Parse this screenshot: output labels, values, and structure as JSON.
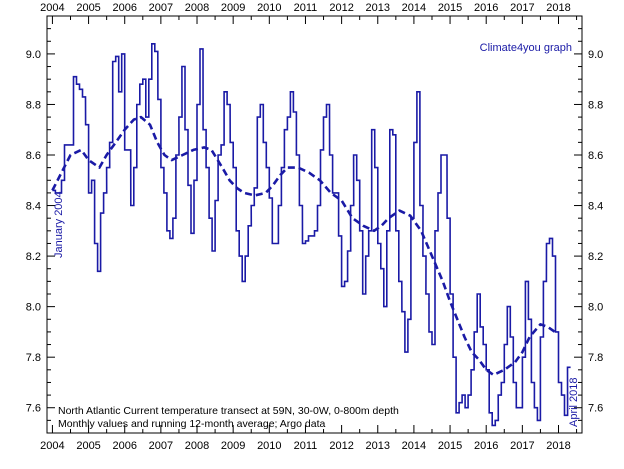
{
  "chart_data": {
    "type": "line",
    "title": "",
    "credit": "Climate4you graph",
    "start_label": "January 2004",
    "end_label": "April 2018",
    "caption": [
      "North Atlantic Current temperature transect at 59N, 30-0W, 0-800m depth",
      "Monthly values and running 12-month average; Argo data"
    ],
    "xlabel": "",
    "ylabel": "",
    "xlim": [
      2003.85,
      2018.65
    ],
    "ylim": [
      7.5,
      9.15
    ],
    "x_ticks": [
      2004,
      2005,
      2006,
      2007,
      2008,
      2009,
      2010,
      2011,
      2012,
      2013,
      2014,
      2015,
      2016,
      2017,
      2018
    ],
    "y_ticks": [
      7.6,
      7.8,
      8.0,
      8.2,
      8.4,
      8.6,
      8.8,
      9.0
    ],
    "y_tick_labels": [
      "7.6",
      "7.8",
      "8.0",
      "8.2",
      "8.4",
      "8.6",
      "8.8",
      "9.0"
    ],
    "colors": {
      "series": "#1a1aa6",
      "axis": "#000000"
    },
    "series": [
      {
        "style": "step",
        "x": [
          2004.0,
          2004.083,
          2004.167,
          2004.25,
          2004.333,
          2004.417,
          2004.5,
          2004.583,
          2004.667,
          2004.75,
          2004.833,
          2004.917,
          2005.0,
          2005.083,
          2005.167,
          2005.25,
          2005.333,
          2005.417,
          2005.5,
          2005.583,
          2005.667,
          2005.75,
          2005.833,
          2005.917,
          2006.0,
          2006.083,
          2006.167,
          2006.25,
          2006.333,
          2006.417,
          2006.5,
          2006.583,
          2006.667,
          2006.75,
          2006.833,
          2006.917,
          2007.0,
          2007.083,
          2007.167,
          2007.25,
          2007.333,
          2007.417,
          2007.5,
          2007.583,
          2007.667,
          2007.75,
          2007.833,
          2007.917,
          2008.0,
          2008.083,
          2008.167,
          2008.25,
          2008.333,
          2008.417,
          2008.5,
          2008.583,
          2008.667,
          2008.75,
          2008.833,
          2008.917,
          2009.0,
          2009.083,
          2009.167,
          2009.25,
          2009.333,
          2009.417,
          2009.5,
          2009.583,
          2009.667,
          2009.75,
          2009.833,
          2009.917,
          2010.0,
          2010.083,
          2010.167,
          2010.25,
          2010.333,
          2010.417,
          2010.5,
          2010.583,
          2010.667,
          2010.75,
          2010.833,
          2010.917,
          2011.0,
          2011.083,
          2011.167,
          2011.25,
          2011.333,
          2011.417,
          2011.5,
          2011.583,
          2011.667,
          2011.75,
          2011.833,
          2011.917,
          2012.0,
          2012.083,
          2012.167,
          2012.25,
          2012.333,
          2012.417,
          2012.5,
          2012.583,
          2012.667,
          2012.75,
          2012.833,
          2012.917,
          2013.0,
          2013.083,
          2013.167,
          2013.25,
          2013.333,
          2013.417,
          2013.5,
          2013.583,
          2013.667,
          2013.75,
          2013.833,
          2013.917,
          2014.0,
          2014.083,
          2014.167,
          2014.25,
          2014.333,
          2014.417,
          2014.5,
          2014.583,
          2014.667,
          2014.75,
          2014.833,
          2014.917,
          2015.0,
          2015.083,
          2015.167,
          2015.25,
          2015.333,
          2015.417,
          2015.5,
          2015.583,
          2015.667,
          2015.75,
          2015.833,
          2015.917,
          2016.0,
          2016.083,
          2016.167,
          2016.25,
          2016.333,
          2016.417,
          2016.5,
          2016.583,
          2016.667,
          2016.75,
          2016.833,
          2016.917,
          2017.0,
          2017.083,
          2017.167,
          2017.25,
          2017.333,
          2017.417,
          2017.5,
          2017.583,
          2017.667,
          2017.75,
          2017.833,
          2017.917,
          2018.0,
          2018.083,
          2018.167,
          2018.25
        ],
        "y": [
          8.46,
          8.45,
          8.45,
          8.5,
          8.64,
          8.64,
          8.64,
          8.91,
          8.88,
          8.86,
          8.83,
          8.72,
          8.45,
          8.5,
          8.25,
          8.14,
          8.37,
          8.45,
          8.55,
          8.65,
          8.97,
          8.99,
          8.85,
          9.0,
          8.62,
          8.62,
          8.4,
          8.55,
          8.8,
          8.88,
          8.9,
          8.75,
          8.9,
          9.04,
          9.01,
          8.82,
          8.55,
          8.45,
          8.3,
          8.27,
          8.35,
          8.6,
          8.75,
          8.95,
          8.7,
          8.48,
          8.29,
          8.5,
          8.8,
          9.02,
          8.7,
          8.55,
          8.35,
          8.22,
          8.42,
          8.6,
          8.64,
          8.85,
          8.8,
          8.65,
          8.55,
          8.3,
          8.2,
          8.1,
          8.2,
          8.32,
          8.4,
          8.47,
          8.75,
          8.8,
          8.65,
          8.55,
          8.43,
          8.25,
          8.25,
          8.4,
          8.55,
          8.7,
          8.75,
          8.85,
          8.77,
          8.6,
          8.4,
          8.25,
          8.26,
          8.28,
          8.28,
          8.3,
          8.4,
          8.62,
          8.75,
          8.8,
          8.6,
          8.45,
          8.45,
          8.28,
          8.08,
          8.1,
          8.22,
          8.4,
          8.6,
          8.5,
          8.3,
          8.05,
          8.2,
          8.3,
          8.7,
          8.55,
          8.25,
          8.15,
          8.0,
          8.3,
          8.7,
          8.68,
          8.3,
          8.1,
          7.98,
          7.82,
          7.95,
          8.35,
          8.65,
          8.85,
          8.4,
          8.2,
          8.05,
          7.9,
          7.85,
          8.3,
          8.45,
          8.6,
          8.6,
          8.35,
          8.05,
          7.8,
          7.58,
          7.62,
          7.65,
          7.6,
          7.65,
          7.75,
          7.9,
          8.05,
          7.92,
          7.85,
          7.75,
          7.58,
          7.53,
          7.55,
          7.65,
          7.7,
          7.85,
          8.0,
          7.88,
          7.7,
          7.6,
          7.6,
          7.8,
          8.1,
          7.95,
          7.7,
          7.6,
          7.55,
          7.88,
          8.1,
          8.25,
          8.27,
          8.2,
          7.9,
          7.7,
          7.65,
          7.57,
          7.76
        ]
      },
      {
        "style": "dashed",
        "x": [
          2004.0,
          2004.5,
          2004.8,
          2005.0,
          2005.3,
          2005.5,
          2005.75,
          2006.0,
          2006.25,
          2006.45,
          2006.7,
          2006.9,
          2007.1,
          2007.3,
          2007.6,
          2007.9,
          2008.2,
          2008.4,
          2008.7,
          2008.9,
          2009.1,
          2009.3,
          2009.6,
          2009.9,
          2010.1,
          2010.3,
          2010.5,
          2010.8,
          2011.1,
          2011.4,
          2011.7,
          2012.0,
          2012.3,
          2012.6,
          2012.9,
          2013.1,
          2013.3,
          2013.6,
          2013.9,
          2014.2,
          2014.5,
          2014.8,
          2015.0,
          2015.2,
          2015.4,
          2015.6,
          2015.8,
          2016.0,
          2016.2,
          2016.5,
          2016.8,
          2017.0,
          2017.2,
          2017.5,
          2017.7,
          2017.9,
          2018.0
        ],
        "y": [
          8.46,
          8.6,
          8.62,
          8.58,
          8.55,
          8.6,
          8.65,
          8.7,
          8.74,
          8.75,
          8.72,
          8.65,
          8.6,
          8.58,
          8.6,
          8.62,
          8.63,
          8.62,
          8.55,
          8.5,
          8.47,
          8.45,
          8.44,
          8.45,
          8.48,
          8.52,
          8.55,
          8.55,
          8.53,
          8.5,
          8.45,
          8.42,
          8.35,
          8.32,
          8.3,
          8.32,
          8.35,
          8.38,
          8.36,
          8.3,
          8.2,
          8.1,
          8.02,
          7.95,
          7.88,
          7.82,
          7.79,
          7.75,
          7.73,
          7.75,
          7.78,
          7.82,
          7.88,
          7.93,
          7.92,
          7.9,
          7.9
        ]
      }
    ]
  }
}
